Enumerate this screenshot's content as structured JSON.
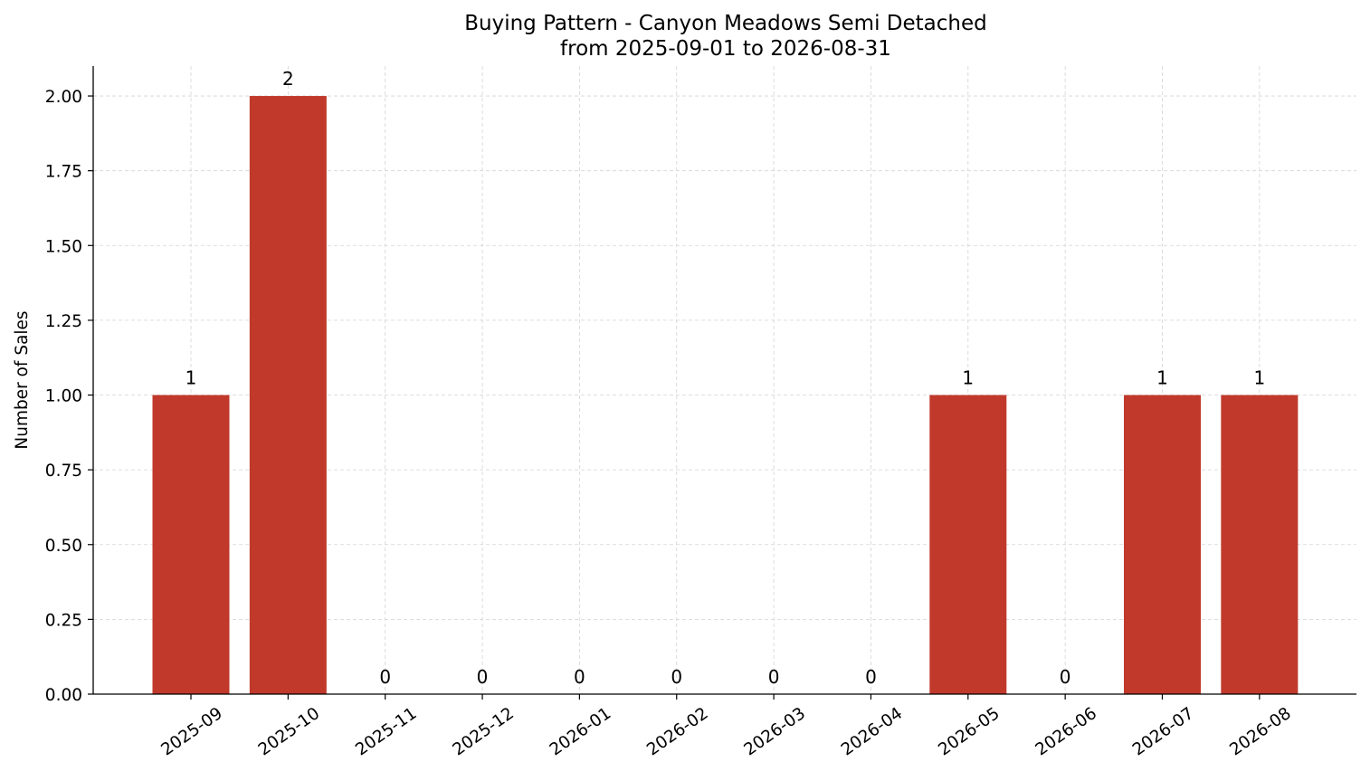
{
  "chart_data": {
    "type": "bar",
    "title": "Buying Pattern - Canyon Meadows Semi Detached",
    "subtitle": "from 2025-09-01 to 2026-08-31",
    "xlabel": "",
    "ylabel": "Number of Sales",
    "categories": [
      "2025-09",
      "2025-10",
      "2025-11",
      "2025-12",
      "2026-01",
      "2026-02",
      "2026-03",
      "2026-04",
      "2026-05",
      "2026-06",
      "2026-07",
      "2026-08"
    ],
    "values": [
      1,
      2,
      0,
      0,
      0,
      0,
      0,
      0,
      1,
      0,
      1,
      1
    ],
    "data_labels": [
      "1",
      "2",
      "0",
      "0",
      "0",
      "0",
      "0",
      "0",
      "1",
      "0",
      "1",
      "1"
    ],
    "yticks": [
      0,
      0.25,
      0.5,
      0.75,
      1.0,
      1.25,
      1.5,
      1.75,
      2.0
    ],
    "ytick_labels": [
      "0.00",
      "0.25",
      "0.50",
      "0.75",
      "1.00",
      "1.25",
      "1.50",
      "1.75",
      "2.00"
    ],
    "ylim": [
      0,
      2.1
    ],
    "grid": true,
    "bar_color": "#c0392b",
    "grid_color": "#d3d3d3"
  }
}
